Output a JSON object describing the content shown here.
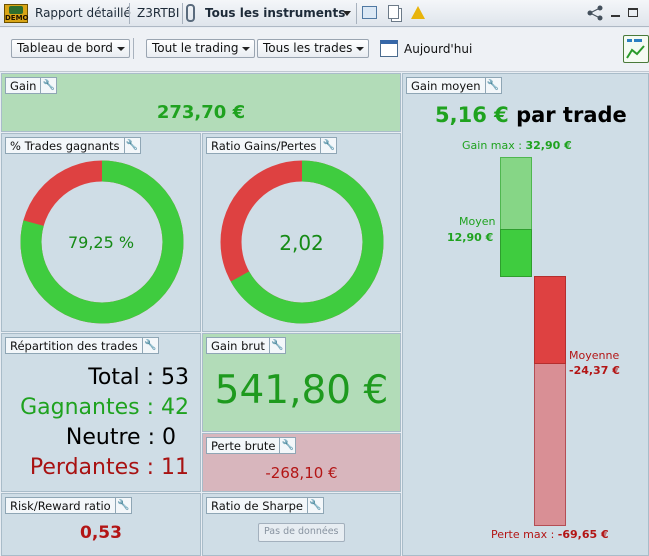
{
  "topbar": {
    "demo_label": "DEMO",
    "report_label": "Rapport détaillé",
    "account": "Z3RTBI",
    "instrument_selector": "Tous les instruments"
  },
  "toolbar": {
    "dashboard": "Tableau de bord",
    "trading_filter": "Tout le trading",
    "trades_filter": "Tous les trades",
    "date_label": "Aujourd'hui"
  },
  "gain": {
    "title": "Gain",
    "value": "273,70 €"
  },
  "win_rate": {
    "title": "% Trades gagnants",
    "label": "79,25 %",
    "fraction": 0.7925
  },
  "gain_loss_ratio": {
    "title": "Ratio Gains/Pertes",
    "label": "2,02",
    "fraction": 0.669
  },
  "avg_gain": {
    "title": "Gain moyen",
    "value": "5,16 €",
    "suffix": "par trade",
    "gain_max_label": "Gain max :",
    "gain_max_value": "32,90 €",
    "avg_label": "Moyen",
    "avg_value": "12,90 €",
    "avg_loss_label": "Moyenne",
    "avg_loss_value": "-24,37 €",
    "loss_max_label": "Perte max :",
    "loss_max_value": "-69,65 €"
  },
  "distribution": {
    "title": "Répartition des trades",
    "rows": [
      {
        "label": "Total",
        "value": "53"
      },
      {
        "label": "Gagnantes",
        "value": "42"
      },
      {
        "label": "Neutre",
        "value": "0"
      },
      {
        "label": "Perdantes",
        "value": "11"
      }
    ]
  },
  "gross_gain": {
    "title": "Gain brut",
    "value": "541,80 €"
  },
  "gross_loss": {
    "title": "Perte brute",
    "value": "-268,10 €"
  },
  "risk_reward": {
    "title": "Risk/Reward ratio",
    "value": "0,53"
  },
  "sharpe": {
    "title": "Ratio de Sharpe",
    "no_data": "Pas de données"
  },
  "colors": {
    "green": "#3fcc3f",
    "red": "#de4141",
    "gain_bg": "#b2dcb8",
    "loss_bg": "#d8b6bd"
  }
}
